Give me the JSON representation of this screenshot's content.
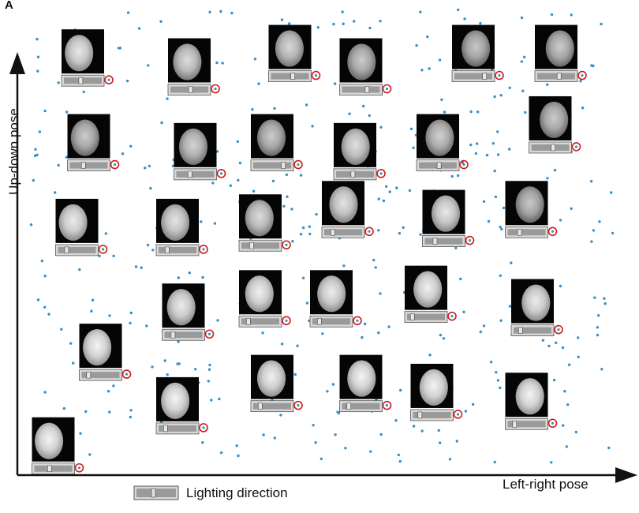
{
  "panel_label": "A",
  "axes": {
    "ylabel": "Up-down pose",
    "xlabel": "Left-right pose"
  },
  "legend": {
    "label": "Lighting direction"
  },
  "colors": {
    "point": "#3a8fc6",
    "marker_ring": "#d11a1a",
    "axis": "#111111",
    "slider_body": "#9a9a9a",
    "slider_frame": "#d8d8d8"
  },
  "chart_data": {
    "type": "scatter",
    "title": "",
    "xlabel": "Left-right pose",
    "ylabel": "Up-down pose",
    "grid": false,
    "legend_placement": "bottom",
    "description_of_marks": "each face thumbnail is annotated with a lighting-direction slider and a circled embedding point",
    "faces": [
      {
        "row": 1,
        "pose_lr": 0.1,
        "pose_ud": 0.92,
        "lighting": 0.45,
        "brightness": 0.75
      },
      {
        "row": 1,
        "pose_lr": 0.28,
        "pose_ud": 0.9,
        "lighting": 0.55,
        "brightness": 0.6
      },
      {
        "row": 1,
        "pose_lr": 0.45,
        "pose_ud": 0.93,
        "lighting": 0.6,
        "brightness": 0.55
      },
      {
        "row": 1,
        "pose_lr": 0.57,
        "pose_ud": 0.9,
        "lighting": 0.7,
        "brightness": 0.4
      },
      {
        "row": 1,
        "pose_lr": 0.76,
        "pose_ud": 0.93,
        "lighting": 0.85,
        "brightness": 0.35
      },
      {
        "row": 1,
        "pose_lr": 0.9,
        "pose_ud": 0.93,
        "lighting": 0.6,
        "brightness": 0.4
      },
      {
        "row": 2,
        "pose_lr": 0.11,
        "pose_ud": 0.73,
        "lighting": 0.35,
        "brightness": 0.4
      },
      {
        "row": 2,
        "pose_lr": 0.29,
        "pose_ud": 0.71,
        "lighting": 0.35,
        "brightness": 0.5
      },
      {
        "row": 2,
        "pose_lr": 0.42,
        "pose_ud": 0.73,
        "lighting": 0.85,
        "brightness": 0.4
      },
      {
        "row": 2,
        "pose_lr": 0.56,
        "pose_ud": 0.71,
        "lighting": 0.45,
        "brightness": 0.65
      },
      {
        "row": 2,
        "pose_lr": 0.7,
        "pose_ud": 0.73,
        "lighting": 0.55,
        "brightness": 0.45
      },
      {
        "row": 2,
        "pose_lr": 0.89,
        "pose_ud": 0.77,
        "lighting": 0.6,
        "brightness": 0.4
      },
      {
        "row": 3,
        "pose_lr": 0.09,
        "pose_ud": 0.54,
        "lighting": 0.2,
        "brightness": 0.8
      },
      {
        "row": 3,
        "pose_lr": 0.26,
        "pose_ud": 0.54,
        "lighting": 0.2,
        "brightness": 0.7
      },
      {
        "row": 3,
        "pose_lr": 0.4,
        "pose_ud": 0.55,
        "lighting": 0.25,
        "brightness": 0.6
      },
      {
        "row": 3,
        "pose_lr": 0.54,
        "pose_ud": 0.58,
        "lighting": 0.2,
        "brightness": 0.7
      },
      {
        "row": 3,
        "pose_lr": 0.71,
        "pose_ud": 0.56,
        "lighting": 0.25,
        "brightness": 0.75
      },
      {
        "row": 3,
        "pose_lr": 0.85,
        "pose_ud": 0.58,
        "lighting": 0.3,
        "brightness": 0.35
      },
      {
        "row": 4,
        "pose_lr": 0.27,
        "pose_ud": 0.35,
        "lighting": 0.2,
        "brightness": 0.8
      },
      {
        "row": 4,
        "pose_lr": 0.4,
        "pose_ud": 0.38,
        "lighting": 0.15,
        "brightness": 0.85
      },
      {
        "row": 4,
        "pose_lr": 0.52,
        "pose_ud": 0.38,
        "lighting": 0.15,
        "brightness": 0.8
      },
      {
        "row": 4,
        "pose_lr": 0.68,
        "pose_ud": 0.39,
        "lighting": 0.1,
        "brightness": 0.85
      },
      {
        "row": 4,
        "pose_lr": 0.86,
        "pose_ud": 0.36,
        "lighting": 0.15,
        "brightness": 0.8
      },
      {
        "row": 5,
        "pose_lr": 0.13,
        "pose_ud": 0.26,
        "lighting": 0.15,
        "brightness": 0.9
      },
      {
        "row": 5,
        "pose_lr": 0.26,
        "pose_ud": 0.14,
        "lighting": 0.15,
        "brightness": 0.9
      },
      {
        "row": 5,
        "pose_lr": 0.42,
        "pose_ud": 0.19,
        "lighting": 0.15,
        "brightness": 0.85
      },
      {
        "row": 5,
        "pose_lr": 0.57,
        "pose_ud": 0.19,
        "lighting": 0.15,
        "brightness": 0.9
      },
      {
        "row": 5,
        "pose_lr": 0.69,
        "pose_ud": 0.17,
        "lighting": 0.15,
        "brightness": 0.9
      },
      {
        "row": 5,
        "pose_lr": 0.85,
        "pose_ud": 0.15,
        "lighting": 0.15,
        "brightness": 0.9
      },
      {
        "row": 6,
        "pose_lr": 0.05,
        "pose_ud": 0.05,
        "lighting": 0.4,
        "brightness": 0.9
      }
    ],
    "scatter_points": {
      "count": 400,
      "distribution": "roughly uniform over the embedding space"
    }
  }
}
